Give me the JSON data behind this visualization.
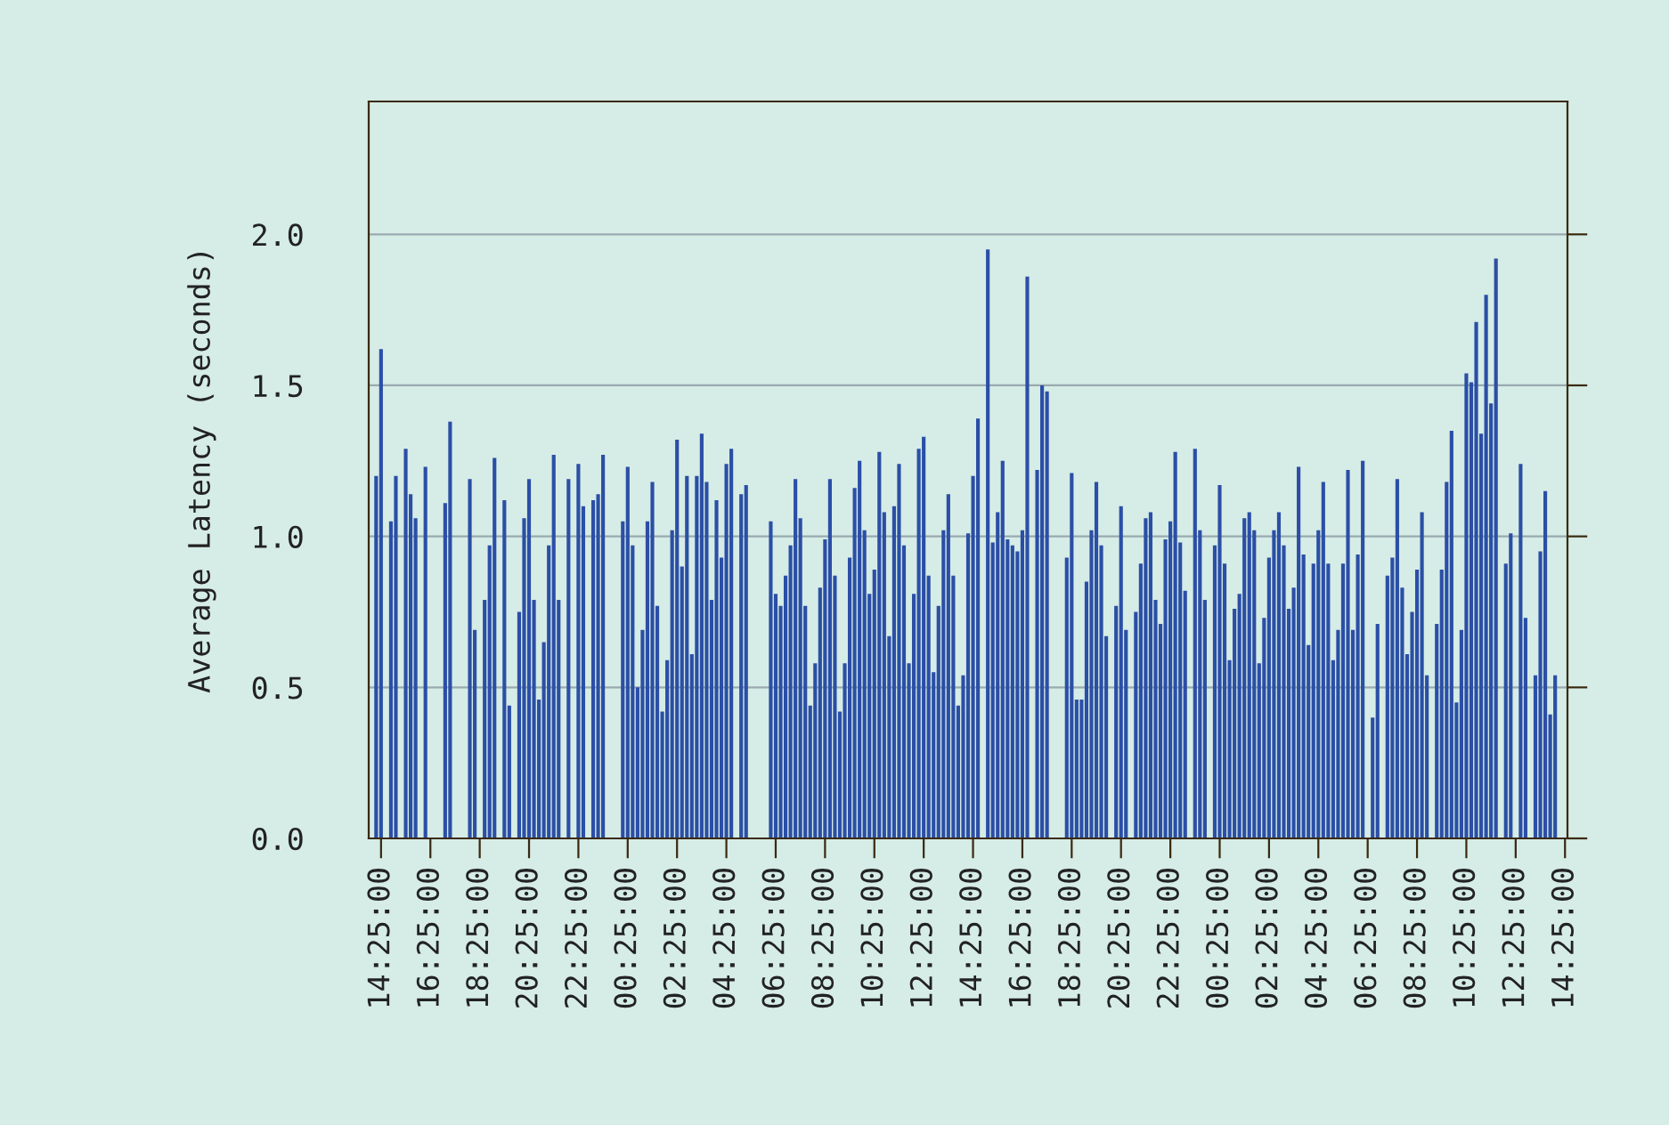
{
  "chart_data": {
    "type": "bar",
    "ylabel": "Average Latency (seconds)",
    "color": "#2b4fa6",
    "categories": [
      null,
      null,
      "14:25:00",
      null,
      null,
      null,
      null,
      null,
      null,
      null,
      null,
      null,
      "16:25:00",
      null,
      null,
      null,
      null,
      null,
      null,
      null,
      null,
      null,
      "18:25:00",
      null,
      null,
      null,
      null,
      null,
      null,
      null,
      null,
      null,
      "20:25:00",
      null,
      null,
      null,
      null,
      null,
      null,
      null,
      null,
      null,
      "22:25:00",
      null,
      null,
      null,
      null,
      null,
      null,
      null,
      null,
      null,
      "00:25:00",
      null,
      null,
      null,
      null,
      null,
      null,
      null,
      null,
      null,
      "02:25:00",
      null,
      null,
      null,
      null,
      null,
      null,
      null,
      null,
      null,
      "04:25:00",
      null,
      null,
      null,
      null,
      null,
      null,
      null,
      null,
      null,
      "06:25:00",
      null,
      null,
      null,
      null,
      null,
      null,
      null,
      null,
      null,
      "08:25:00",
      null,
      null,
      null,
      null,
      null,
      null,
      null,
      null,
      null,
      "10:25:00",
      null,
      null,
      null,
      null,
      null,
      null,
      null,
      null,
      null,
      "12:25:00",
      null,
      null,
      null,
      null,
      null,
      null,
      null,
      null,
      null,
      "14:25:00",
      null,
      null,
      null,
      null,
      null,
      null,
      null,
      null,
      null,
      "16:25:00",
      null,
      null,
      null,
      null,
      null,
      null,
      null,
      null,
      null,
      "18:25:00",
      null,
      null,
      null,
      null,
      null,
      null,
      null,
      null,
      null,
      "20:25:00",
      null,
      null,
      null,
      null,
      null,
      null,
      null,
      null,
      null,
      "22:25:00",
      null,
      null,
      null,
      null,
      null,
      null,
      null,
      null,
      null,
      "00:25:00",
      null,
      null,
      null,
      null,
      null,
      null,
      null,
      null,
      null,
      "02:25:00",
      null,
      null,
      null,
      null,
      null,
      null,
      null,
      null,
      null,
      "04:25:00",
      null,
      null,
      null,
      null,
      null,
      null,
      null,
      null,
      null,
      "06:25:00",
      null,
      null,
      null,
      null,
      null,
      null,
      null,
      null,
      null,
      "08:25:00",
      null,
      null,
      null,
      null,
      null,
      null,
      null,
      null,
      null,
      "10:25:00",
      null,
      null,
      null,
      null,
      null,
      null,
      null,
      null,
      null,
      "12:25:00",
      null,
      null,
      null,
      null,
      null,
      null,
      null,
      null,
      null,
      "14:25:00"
    ],
    "values": [
      null,
      1.2,
      1.62,
      null,
      1.05,
      1.2,
      null,
      1.29,
      1.14,
      1.06,
      null,
      1.23,
      null,
      null,
      null,
      1.11,
      1.38,
      null,
      null,
      null,
      1.19,
      0.69,
      null,
      0.79,
      0.97,
      1.26,
      null,
      1.12,
      0.44,
      null,
      0.75,
      1.06,
      1.19,
      0.79,
      0.46,
      0.65,
      0.97,
      1.27,
      0.79,
      null,
      1.19,
      null,
      1.24,
      1.1,
      null,
      1.12,
      1.14,
      1.27,
      null,
      null,
      null,
      1.05,
      1.23,
      0.97,
      0.5,
      0.69,
      1.05,
      1.18,
      0.77,
      0.42,
      0.59,
      1.02,
      1.32,
      0.9,
      1.2,
      0.61,
      1.2,
      1.34,
      1.18,
      0.79,
      1.12,
      0.93,
      1.24,
      1.29,
      null,
      1.14,
      1.17,
      null,
      null,
      null,
      null,
      1.05,
      0.81,
      0.77,
      0.87,
      0.97,
      1.19,
      1.06,
      0.77,
      0.44,
      0.58,
      0.83,
      0.99,
      1.19,
      0.87,
      0.42,
      0.58,
      0.93,
      1.16,
      1.25,
      1.02,
      0.81,
      0.89,
      1.28,
      1.08,
      0.67,
      1.1,
      1.24,
      0.97,
      0.58,
      0.81,
      1.29,
      1.33,
      0.87,
      0.55,
      0.77,
      1.02,
      1.14,
      0.87,
      0.44,
      0.54,
      1.01,
      1.2,
      1.39,
      null,
      1.95,
      0.98,
      1.08,
      1.25,
      0.99,
      0.97,
      0.95,
      1.02,
      1.86,
      null,
      1.22,
      1.5,
      1.48,
      null,
      null,
      null,
      0.93,
      1.21,
      0.46,
      0.46,
      0.85,
      1.02,
      1.18,
      0.97,
      0.67,
      null,
      0.77,
      1.1,
      0.69,
      null,
      0.75,
      0.91,
      1.06,
      1.08,
      0.79,
      0.71,
      0.99,
      1.05,
      1.28,
      0.98,
      0.82,
      null,
      1.29,
      1.02,
      0.79,
      null,
      0.97,
      1.17,
      0.91,
      0.59,
      0.76,
      0.81,
      1.06,
      1.08,
      1.02,
      0.58,
      0.73,
      0.93,
      1.02,
      1.08,
      0.97,
      0.76,
      0.83,
      1.23,
      0.94,
      0.64,
      0.91,
      1.02,
      1.18,
      0.91,
      0.59,
      0.69,
      0.91,
      1.22,
      0.69,
      0.94,
      1.25,
      null,
      0.4,
      0.71,
      null,
      0.87,
      0.93,
      1.19,
      0.83,
      0.61,
      0.75,
      0.89,
      1.08,
      0.54,
      null,
      0.71,
      0.89,
      1.18,
      1.35,
      0.45,
      0.69,
      1.54,
      1.51,
      1.71,
      1.34,
      1.8,
      1.44,
      1.92,
      null,
      0.91,
      1.01,
      null,
      1.24,
      0.73,
      null,
      0.54,
      0.95,
      1.15,
      0.41,
      0.54,
      null,
      null
    ],
    "ylim": [
      0,
      2.44
    ],
    "yticks": [
      {
        "value": 0,
        "label": "0.0"
      },
      {
        "value": 0.5,
        "label": "0.5"
      },
      {
        "value": 1,
        "label": "1.0"
      },
      {
        "value": 1.5,
        "label": "1.5"
      },
      {
        "value": 2,
        "label": "2.0"
      }
    ],
    "grid": "y",
    "legend": false
  }
}
